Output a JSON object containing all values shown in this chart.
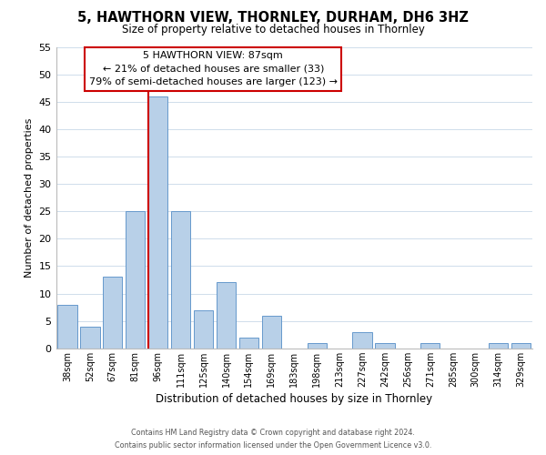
{
  "title": "5, HAWTHORN VIEW, THORNLEY, DURHAM, DH6 3HZ",
  "subtitle": "Size of property relative to detached houses in Thornley",
  "xlabel": "Distribution of detached houses by size in Thornley",
  "ylabel": "Number of detached properties",
  "bar_labels": [
    "38sqm",
    "52sqm",
    "67sqm",
    "81sqm",
    "96sqm",
    "111sqm",
    "125sqm",
    "140sqm",
    "154sqm",
    "169sqm",
    "183sqm",
    "198sqm",
    "213sqm",
    "227sqm",
    "242sqm",
    "256sqm",
    "271sqm",
    "285sqm",
    "300sqm",
    "314sqm",
    "329sqm"
  ],
  "bar_values": [
    8,
    4,
    13,
    25,
    46,
    25,
    7,
    12,
    2,
    6,
    0,
    1,
    0,
    3,
    1,
    0,
    1,
    0,
    0,
    1,
    1
  ],
  "bar_color": "#b8d0e8",
  "bar_edge_color": "#6699cc",
  "ylim": [
    0,
    55
  ],
  "yticks": [
    0,
    5,
    10,
    15,
    20,
    25,
    30,
    35,
    40,
    45,
    50,
    55
  ],
  "vline_color": "#cc0000",
  "annotation_title": "5 HAWTHORN VIEW: 87sqm",
  "annotation_line1": "← 21% of detached houses are smaller (33)",
  "annotation_line2": "79% of semi-detached houses are larger (123) →",
  "annotation_box_color": "#ffffff",
  "annotation_box_edge": "#cc0000",
  "footer_line1": "Contains HM Land Registry data © Crown copyright and database right 2024.",
  "footer_line2": "Contains public sector information licensed under the Open Government Licence v3.0.",
  "background_color": "#ffffff",
  "grid_color": "#c8d8e8"
}
